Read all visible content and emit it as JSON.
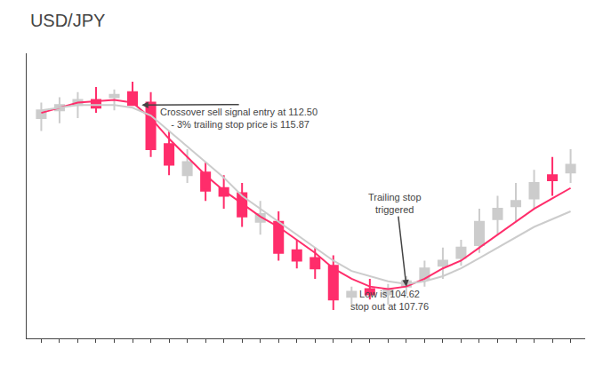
{
  "chart_data": {
    "type": "candlestick",
    "title": "USD/JPY",
    "x": [
      0,
      1,
      2,
      3,
      4,
      5,
      6,
      7,
      8,
      9,
      10,
      11,
      12,
      13,
      14,
      15,
      16,
      17,
      18,
      19,
      20,
      21,
      22,
      23,
      24,
      25,
      26,
      27,
      28,
      29
    ],
    "series": [
      {
        "type": "candlestick",
        "open": [
          112.0,
          112.3,
          112.5,
          112.7,
          112.8,
          113.0,
          112.6,
          111.0,
          110.3,
          109.9,
          109.3,
          109.1,
          108.3,
          108.0,
          106.9,
          106.6,
          106.3,
          105.1,
          105.4,
          105.2,
          105.5,
          105.8,
          106.3,
          106.6,
          107.1,
          108.1,
          108.6,
          108.9,
          109.6,
          109.9
        ],
        "high": [
          112.6,
          112.8,
          113.0,
          113.2,
          113.1,
          113.4,
          113.0,
          111.5,
          110.8,
          110.3,
          109.8,
          109.5,
          108.8,
          108.4,
          107.3,
          107.0,
          106.7,
          105.5,
          105.8,
          105.6,
          105.9,
          106.5,
          107.0,
          107.3,
          108.5,
          109.0,
          109.5,
          110.0,
          110.5,
          110.8
        ],
        "low": [
          111.5,
          111.8,
          112.0,
          112.2,
          112.3,
          112.5,
          110.5,
          109.8,
          109.5,
          108.8,
          108.5,
          107.8,
          107.5,
          106.5,
          106.2,
          105.8,
          104.6,
          104.8,
          105.0,
          104.8,
          105.2,
          105.5,
          105.8,
          106.3,
          106.8,
          107.5,
          108.0,
          108.5,
          109.0,
          109.5
        ],
        "close": [
          112.3,
          112.5,
          112.7,
          112.4,
          112.9,
          112.5,
          110.8,
          110.2,
          109.8,
          109.2,
          109.0,
          108.2,
          108.0,
          106.8,
          106.5,
          106.2,
          105.0,
          105.3,
          105.2,
          105.4,
          105.7,
          106.2,
          106.5,
          107.0,
          108.0,
          108.5,
          108.8,
          109.5,
          109.8,
          110.2
        ],
        "colors": [
          "#cccccc",
          "#cccccc",
          "#cccccc",
          "#ff2d6b",
          "#cccccc",
          "#ff2d6b",
          "#ff2d6b",
          "#ff2d6b",
          "#cccccc",
          "#ff2d6b",
          "#ff2d6b",
          "#ff2d6b",
          "#cccccc",
          "#ff2d6b",
          "#ff2d6b",
          "#ff2d6b",
          "#ff2d6b",
          "#cccccc",
          "#ff2d6b",
          "#cccccc",
          "#cccccc",
          "#cccccc",
          "#cccccc",
          "#cccccc",
          "#cccccc",
          "#cccccc",
          "#cccccc",
          "#cccccc",
          "#ff2d6b",
          "#cccccc"
        ]
      },
      {
        "type": "line",
        "color": "#ff2d6b",
        "values": [
          112.2,
          112.4,
          112.6,
          112.65,
          112.7,
          112.6,
          112.0,
          111.2,
          110.5,
          109.8,
          109.2,
          108.7,
          108.2,
          107.8,
          107.3,
          106.8,
          106.2,
          105.8,
          105.5,
          105.4,
          105.5,
          105.8,
          106.2,
          106.5,
          107.0,
          107.5,
          108.0,
          108.5,
          108.9,
          109.3
        ]
      },
      {
        "type": "line",
        "color": "#cccccc",
        "values": [
          112.3,
          112.4,
          112.5,
          112.5,
          112.5,
          112.4,
          112.1,
          111.5,
          110.9,
          110.3,
          109.7,
          109.0,
          108.5,
          108.0,
          107.5,
          107.0,
          106.5,
          106.1,
          105.9,
          105.7,
          105.6,
          105.7,
          105.9,
          106.2,
          106.6,
          107.0,
          107.4,
          107.8,
          108.1,
          108.4
        ]
      }
    ],
    "annotations": [
      {
        "text": "Crossover sell signal entry at 112.50\n - 3% trailing stop price is 115.87",
        "x": 5.5,
        "y": 112.5
      },
      {
        "text": "Trailing stop\ntriggered",
        "x": 20,
        "y": 105.5
      },
      {
        "text": "Low is 104.62\nstop out at 107.76"
      }
    ],
    "xlim": [
      -0.8,
      29.8
    ],
    "xticks": [
      0,
      1,
      2,
      3,
      4,
      5,
      6,
      7,
      8,
      9,
      10,
      11,
      12,
      13,
      14,
      15,
      16,
      17,
      18,
      19,
      20,
      21,
      22,
      23,
      24,
      25,
      26,
      27,
      28,
      29
    ],
    "ylim": [
      103.5,
      114.5
    ],
    "grid": false,
    "tick_labels": false
  }
}
